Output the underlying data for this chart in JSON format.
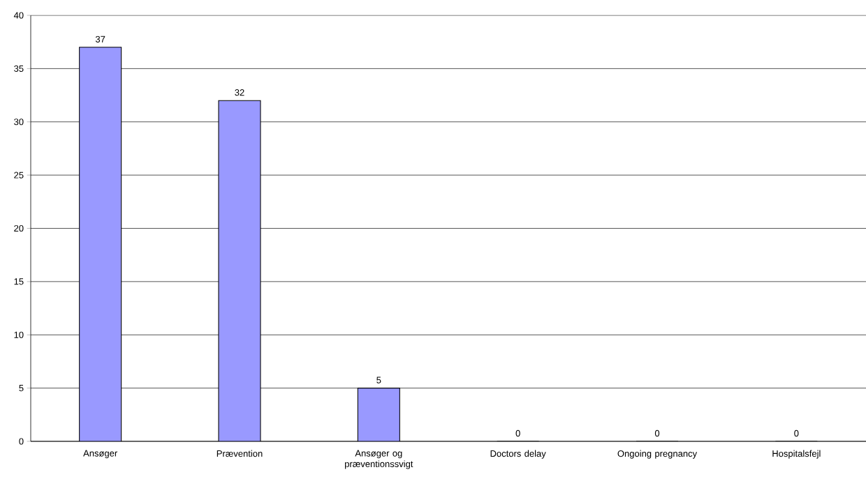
{
  "chart_data": {
    "type": "bar",
    "categories": [
      "Ansøger",
      "Prævention",
      "Ansøger og præventionssvigt",
      "Doctors delay",
      "Ongoing pregnancy",
      "Hospitalsfejl"
    ],
    "values": [
      37,
      32,
      5,
      0,
      0,
      0
    ],
    "color": "#9999ff",
    "ylim": [
      0,
      40
    ],
    "yticks": [
      0,
      5,
      10,
      15,
      20,
      25,
      30,
      35,
      40
    ],
    "grid": "y",
    "data_labels": true
  }
}
